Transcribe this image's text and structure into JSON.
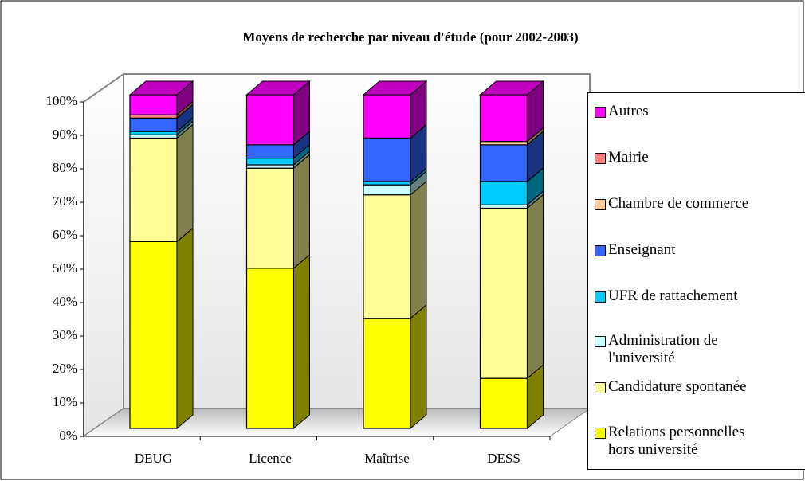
{
  "chart_data": {
    "type": "bar3d_stacked_percent",
    "title": "Moyens de recherche par niveau d'étude (pour 2002-2003)",
    "categories": [
      "DEUG",
      "Licence",
      "Maîtrise",
      "DESS"
    ],
    "series": [
      {
        "name": "Relations personnelles hors université",
        "color": "#FFFF00",
        "values": [
          56,
          48,
          33,
          15
        ]
      },
      {
        "name": "Candidature spontanée",
        "color": "#FFFF99",
        "values": [
          31,
          30,
          37,
          51
        ]
      },
      {
        "name": "Administration de l'université",
        "color": "#CCFFFF",
        "values": [
          1,
          1,
          3,
          1
        ]
      },
      {
        "name": "UFR de rattachement",
        "color": "#00CCFF",
        "values": [
          1,
          2,
          1,
          7
        ]
      },
      {
        "name": "Enseignant",
        "color": "#3366FF",
        "values": [
          4,
          4,
          13,
          11
        ]
      },
      {
        "name": "Chambre de commerce",
        "color": "#FFCC99",
        "values": [
          0,
          0,
          0,
          1
        ]
      },
      {
        "name": "Mairie",
        "color": "#FF8080",
        "values": [
          1,
          0,
          0,
          0
        ]
      },
      {
        "name": "Autres",
        "color": "#FF00FF",
        "values": [
          6,
          15,
          13,
          14
        ]
      }
    ],
    "ylim": [
      0,
      100
    ],
    "yticks": [
      {
        "value": 0,
        "label": "0%"
      },
      {
        "value": 10,
        "label": "10%"
      },
      {
        "value": 20,
        "label": "20%"
      },
      {
        "value": 30,
        "label": "30%"
      },
      {
        "value": 40,
        "label": "40%"
      },
      {
        "value": 50,
        "label": "50%"
      },
      {
        "value": 60,
        "label": "60%"
      },
      {
        "value": 70,
        "label": "70%"
      },
      {
        "value": 80,
        "label": "80%"
      },
      {
        "value": 90,
        "label": "90%"
      },
      {
        "value": 100,
        "label": "100%"
      }
    ],
    "legend": "right"
  }
}
